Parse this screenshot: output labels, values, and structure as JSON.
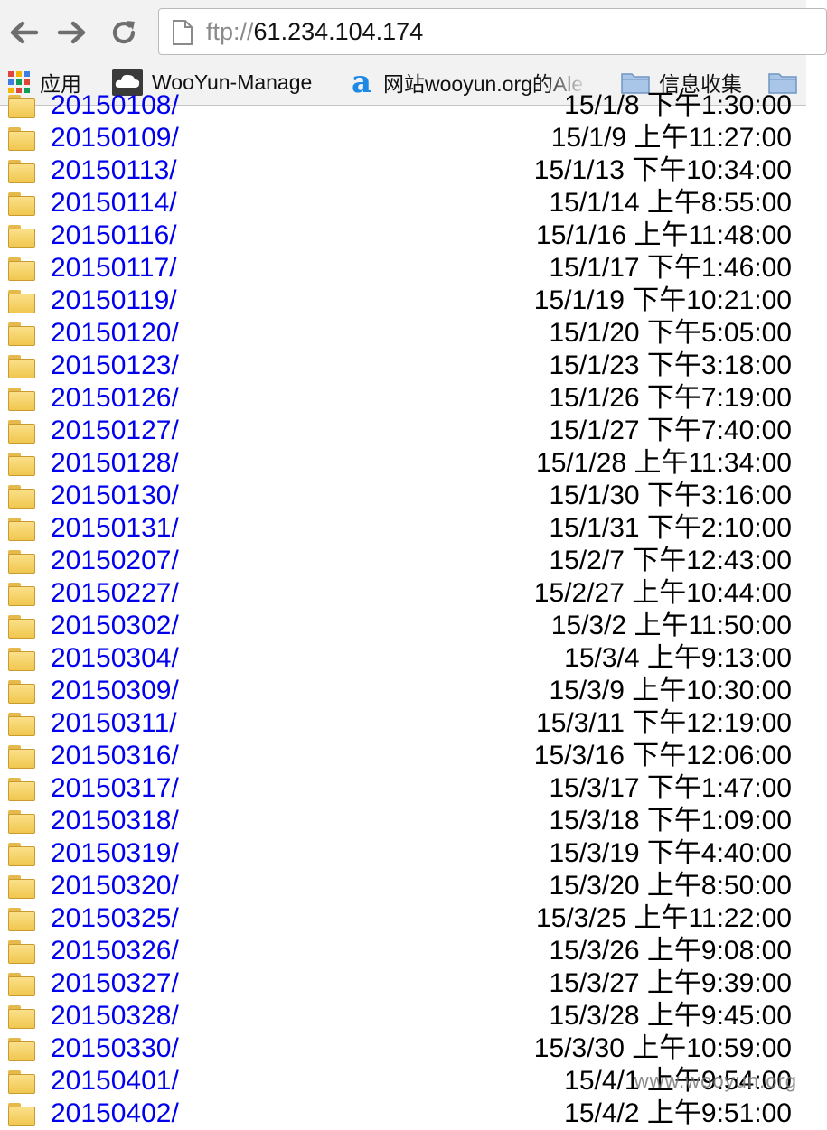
{
  "toolbar": {
    "url_scheme": "ftp://",
    "url_host": "61.234.104.174"
  },
  "bookmarks": [
    {
      "label": "应用",
      "icon": "apps-grid-icon"
    },
    {
      "label": "WooYun-Manage",
      "icon": "cloud-icon"
    },
    {
      "label": "网站wooyun.org的Ale",
      "icon": "alexa-a-icon"
    },
    {
      "label": "信息收集",
      "icon": "folder-icon"
    },
    {
      "label": "",
      "icon": "folder-icon"
    }
  ],
  "listing": [
    {
      "name": "20150108/",
      "date": "15/1/8 下午1:30:00"
    },
    {
      "name": "20150109/",
      "date": "15/1/9 上午11:27:00"
    },
    {
      "name": "20150113/",
      "date": "15/1/13 下午10:34:00"
    },
    {
      "name": "20150114/",
      "date": "15/1/14 上午8:55:00"
    },
    {
      "name": "20150116/",
      "date": "15/1/16 上午11:48:00"
    },
    {
      "name": "20150117/",
      "date": "15/1/17 下午1:46:00"
    },
    {
      "name": "20150119/",
      "date": "15/1/19 下午10:21:00"
    },
    {
      "name": "20150120/",
      "date": "15/1/20 下午5:05:00"
    },
    {
      "name": "20150123/",
      "date": "15/1/23 下午3:18:00"
    },
    {
      "name": "20150126/",
      "date": "15/1/26 下午7:19:00"
    },
    {
      "name": "20150127/",
      "date": "15/1/27 下午7:40:00"
    },
    {
      "name": "20150128/",
      "date": "15/1/28 上午11:34:00"
    },
    {
      "name": "20150130/",
      "date": "15/1/30 下午3:16:00"
    },
    {
      "name": "20150131/",
      "date": "15/1/31 下午2:10:00"
    },
    {
      "name": "20150207/",
      "date": "15/2/7 下午12:43:00"
    },
    {
      "name": "20150227/",
      "date": "15/2/27 上午10:44:00"
    },
    {
      "name": "20150302/",
      "date": "15/3/2 上午11:50:00"
    },
    {
      "name": "20150304/",
      "date": "15/3/4 上午9:13:00"
    },
    {
      "name": "20150309/",
      "date": "15/3/9 上午10:30:00"
    },
    {
      "name": "20150311/",
      "date": "15/3/11 下午12:19:00"
    },
    {
      "name": "20150316/",
      "date": "15/3/16 下午12:06:00"
    },
    {
      "name": "20150317/",
      "date": "15/3/17 下午1:47:00"
    },
    {
      "name": "20150318/",
      "date": "15/3/18 下午1:09:00"
    },
    {
      "name": "20150319/",
      "date": "15/3/19 下午4:40:00"
    },
    {
      "name": "20150320/",
      "date": "15/3/20 上午8:50:00"
    },
    {
      "name": "20150325/",
      "date": "15/3/25 上午11:22:00"
    },
    {
      "name": "20150326/",
      "date": "15/3/26 上午9:08:00"
    },
    {
      "name": "20150327/",
      "date": "15/3/27 上午9:39:00"
    },
    {
      "name": "20150328/",
      "date": "15/3/28 上午9:45:00"
    },
    {
      "name": "20150330/",
      "date": "15/3/30 上午10:59:00"
    },
    {
      "name": "20150401/",
      "date": "15/4/1 上午9:54:00"
    },
    {
      "name": "20150402/",
      "date": "15/4/2 上午9:51:00"
    }
  ],
  "watermark": "www.wooyun.org",
  "colors": {
    "link": "#0000ee",
    "chrome_bg": "#f2f2f2",
    "folder": "#f0c74f"
  }
}
